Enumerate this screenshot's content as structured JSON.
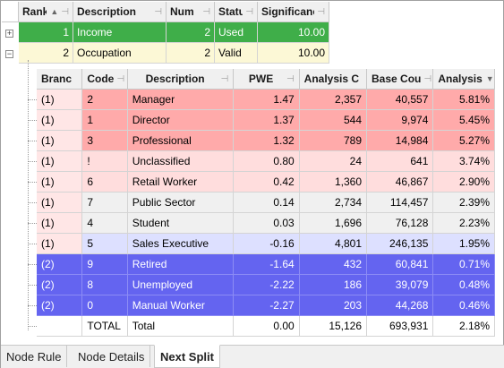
{
  "top_grid": {
    "columns": [
      "Rank",
      "Description",
      "Num",
      "Statu",
      "Significanc"
    ],
    "rows": [
      {
        "rank": "1",
        "description": "Income",
        "num": "2",
        "status": "Used",
        "significance": "10.00"
      },
      {
        "rank": "2",
        "description": "Occupation",
        "num": "2",
        "status": "Valid",
        "significance": "10.00"
      }
    ]
  },
  "colors": {
    "green": "#3fae49",
    "cream": "#fcf8d6",
    "red_strong": "#ffaaaa",
    "red_light": "#ffdddd",
    "grey": "#f0f0f0",
    "blue_light": "#dde0ff",
    "blue_strong": "#6464f0"
  },
  "nested_grid": {
    "columns": [
      "Branc",
      "Code",
      "Description",
      "PWE",
      "Analysis C",
      "Base Cou",
      "Analysis"
    ],
    "rows": [
      {
        "branch": "(1)",
        "code": "2",
        "description": "Manager",
        "pwe": "1.47",
        "analysis_count": "2,357",
        "base_count": "40,557",
        "analysis": "5.81%",
        "style": "red_strong"
      },
      {
        "branch": "(1)",
        "code": "1",
        "description": "Director",
        "pwe": "1.37",
        "analysis_count": "544",
        "base_count": "9,974",
        "analysis": "5.45%",
        "style": "red_strong"
      },
      {
        "branch": "(1)",
        "code": "3",
        "description": "Professional",
        "pwe": "1.32",
        "analysis_count": "789",
        "base_count": "14,984",
        "analysis": "5.27%",
        "style": "red_strong"
      },
      {
        "branch": "(1)",
        "code": "!",
        "description": "Unclassified",
        "pwe": "0.80",
        "analysis_count": "24",
        "base_count": "641",
        "analysis": "3.74%",
        "style": "red_light"
      },
      {
        "branch": "(1)",
        "code": "6",
        "description": "Retail Worker",
        "pwe": "0.42",
        "analysis_count": "1,360",
        "base_count": "46,867",
        "analysis": "2.90%",
        "style": "red_light"
      },
      {
        "branch": "(1)",
        "code": "7",
        "description": "Public Sector",
        "pwe": "0.14",
        "analysis_count": "2,734",
        "base_count": "114,457",
        "analysis": "2.39%",
        "style": "grey"
      },
      {
        "branch": "(1)",
        "code": "4",
        "description": "Student",
        "pwe": "0.03",
        "analysis_count": "1,696",
        "base_count": "76,128",
        "analysis": "2.23%",
        "style": "grey"
      },
      {
        "branch": "(1)",
        "code": "5",
        "description": "Sales Executive",
        "pwe": "-0.16",
        "analysis_count": "4,801",
        "base_count": "246,135",
        "analysis": "1.95%",
        "style": "blue_light"
      },
      {
        "branch": "(2)",
        "code": "9",
        "description": "Retired",
        "pwe": "-1.64",
        "analysis_count": "432",
        "base_count": "60,841",
        "analysis": "0.71%",
        "style": "blue_strong"
      },
      {
        "branch": "(2)",
        "code": "8",
        "description": "Unemployed",
        "pwe": "-2.22",
        "analysis_count": "186",
        "base_count": "39,079",
        "analysis": "0.48%",
        "style": "blue_strong"
      },
      {
        "branch": "(2)",
        "code": "0",
        "description": "Manual Worker",
        "pwe": "-2.27",
        "analysis_count": "203",
        "base_count": "44,268",
        "analysis": "0.46%",
        "style": "blue_strong"
      },
      {
        "branch": "",
        "code": "TOTAL",
        "description": "Total",
        "pwe": "0.00",
        "analysis_count": "15,126",
        "base_count": "693,931",
        "analysis": "2.18%",
        "style": "white"
      }
    ]
  },
  "tabs": [
    {
      "label": "Node Rule",
      "active": false
    },
    {
      "label": "Node Details",
      "active": false
    },
    {
      "label": "Next Split",
      "active": true
    }
  ]
}
